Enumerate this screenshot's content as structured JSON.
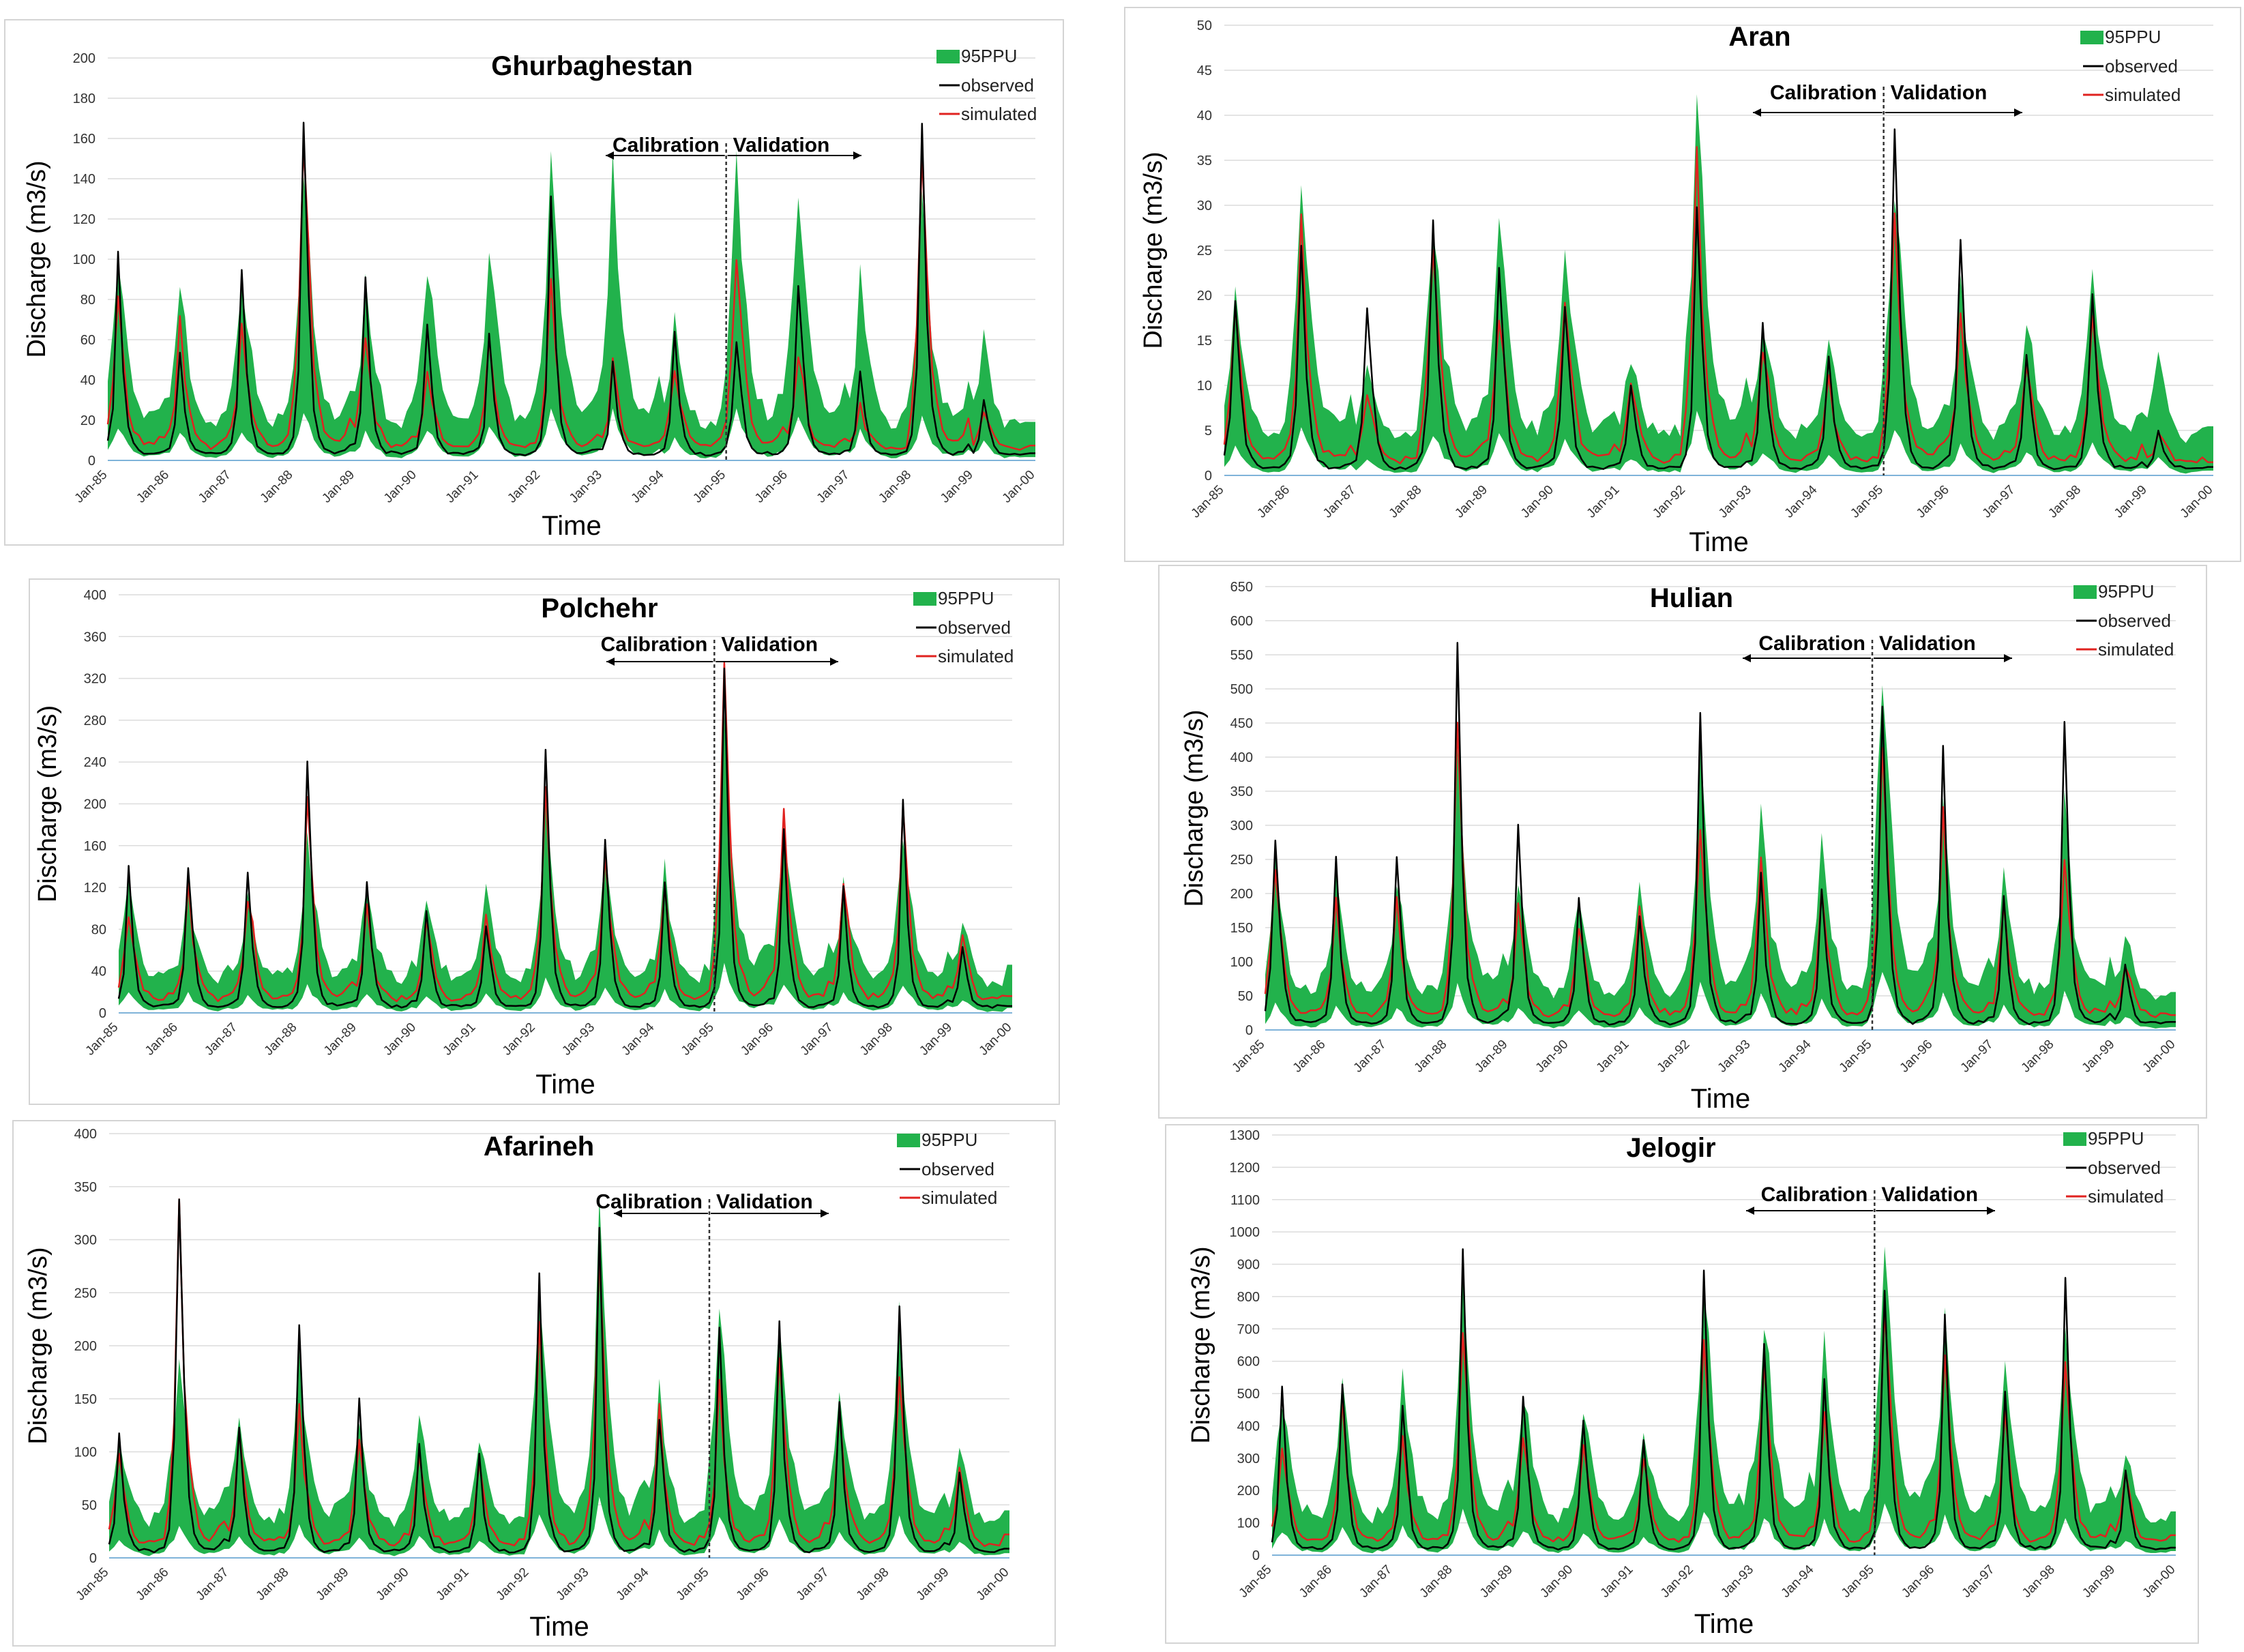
{
  "legend": {
    "band": "95PPU",
    "observed": "observed",
    "simulated": "simulated"
  },
  "annotations": {
    "calibration": "Calibration",
    "validation": "Validation"
  },
  "axis_labels": {
    "y": "Discharge (m3/s)",
    "x": "Time"
  },
  "colors": {
    "band": "#22b24c",
    "observed": "#000000",
    "simulated": "#e0221f",
    "divider": "#333333"
  },
  "x_ticks": [
    "Jan-85",
    "Jan-86",
    "Jan-87",
    "Jan-88",
    "Jan-89",
    "Jan-90",
    "Jan-91",
    "Jan-92",
    "Jan-93",
    "Jan-94",
    "Jan-95",
    "Jan-96",
    "Jan-97",
    "Jan-98",
    "Jan-99",
    "Jan-00"
  ],
  "chart_data": [
    {
      "type": "area",
      "title": "Ghurbaghestan",
      "ylabel": "Discharge (m3/s)",
      "xlabel": "Time",
      "ylim": [
        0,
        200
      ],
      "y_ticks": [
        0,
        20,
        40,
        60,
        80,
        100,
        120,
        140,
        160,
        180,
        200
      ],
      "x_range": [
        "Jan-85",
        "Jan-00"
      ],
      "validation_start": "Jan-95",
      "series": [
        {
          "name": "observed",
          "peaks": [
            95,
            52,
            92,
            165,
            85,
            67,
            55,
            125,
            42,
            55,
            60,
            95,
            40,
            165,
            25
          ]
        },
        {
          "name": "simulated",
          "peaks": [
            75,
            60,
            65,
            158,
            60,
            40,
            50,
            90,
            40,
            45,
            106,
            50,
            20,
            150,
            20
          ]
        },
        {
          "name": "95PPU",
          "peaks": [
            85,
            70,
            80,
            125,
            75,
            85,
            95,
            145,
            130,
            55,
            130,
            135,
            75,
            110,
            45
          ]
        }
      ]
    },
    {
      "type": "area",
      "title": "Aran",
      "ylabel": "Discharge (m3/s)",
      "xlabel": "Time",
      "ylim": [
        0,
        50
      ],
      "y_ticks": [
        0,
        5,
        10,
        15,
        20,
        25,
        30,
        35,
        40,
        45,
        50
      ],
      "x_range": [
        "Jan-85",
        "Jan-00"
      ],
      "validation_start": "Jan-95",
      "series": [
        {
          "name": "observed",
          "peaks": [
            20,
            23,
            18,
            27,
            23,
            19,
            9,
            28,
            15,
            13,
            37,
            23,
            12,
            21,
            4
          ]
        },
        {
          "name": "simulated",
          "peaks": [
            16,
            25,
            8,
            26,
            18,
            19,
            10,
            32,
            14,
            9,
            28,
            17,
            12,
            16,
            3
          ]
        },
        {
          "name": "95PPU",
          "peaks": [
            17,
            30,
            10,
            27,
            24,
            24,
            11,
            38,
            15,
            11,
            30,
            18,
            15,
            20,
            10
          ]
        }
      ]
    },
    {
      "type": "area",
      "title": "Polchehr",
      "ylabel": "Discharge (m3/s)",
      "xlabel": "Time",
      "ylim": [
        0,
        400
      ],
      "y_ticks": [
        0,
        40,
        80,
        120,
        160,
        200,
        240,
        280,
        320,
        360,
        400
      ],
      "x_range": [
        "Jan-85",
        "Jan-00"
      ],
      "validation_start": "Jan-95",
      "series": [
        {
          "name": "observed",
          "peaks": [
            130,
            142,
            128,
            225,
            130,
            97,
            80,
            232,
            150,
            112,
            290,
            155,
            110,
            180,
            55
          ]
        },
        {
          "name": "simulated",
          "peaks": [
            90,
            100,
            110,
            175,
            85,
            80,
            88,
            205,
            155,
            113,
            297,
            177,
            120,
            170,
            58
          ]
        },
        {
          "name": "95PPU",
          "peaks": [
            95,
            95,
            80,
            150,
            95,
            95,
            85,
            175,
            130,
            105,
            250,
            160,
            100,
            150,
            55
          ]
        }
      ]
    },
    {
      "type": "area",
      "title": "Hulian",
      "ylabel": "Discharge (m3/s)",
      "xlabel": "Time",
      "ylim": [
        0,
        650
      ],
      "y_ticks": [
        0,
        50,
        100,
        150,
        200,
        250,
        300,
        350,
        400,
        450,
        500,
        550,
        600,
        650
      ],
      "x_range": [
        "Jan-85",
        "Jan-00"
      ],
      "validation_start": "Jan-95",
      "series": [
        {
          "name": "observed",
          "peaks": [
            300,
            235,
            245,
            525,
            265,
            195,
            175,
            425,
            210,
            220,
            480,
            380,
            175,
            435,
            85
          ]
        },
        {
          "name": "simulated",
          "peaks": [
            215,
            160,
            160,
            415,
            160,
            140,
            155,
            305,
            255,
            205,
            420,
            280,
            170,
            260,
            80
          ]
        },
        {
          "name": "95PPU",
          "peaks": [
            190,
            180,
            170,
            340,
            170,
            160,
            170,
            345,
            280,
            220,
            510,
            290,
            180,
            270,
            100
          ]
        }
      ]
    },
    {
      "type": "area",
      "title": "Afarineh",
      "ylabel": "Discharge (m3/s)",
      "xlabel": "Time",
      "ylim": [
        0,
        400
      ],
      "y_ticks": [
        0,
        50,
        100,
        150,
        200,
        250,
        300,
        350,
        400
      ],
      "x_range": [
        "Jan-85",
        "Jan-00"
      ],
      "validation_start": "Jan-95",
      "series": [
        {
          "name": "observed",
          "peaks": [
            110,
            365,
            118,
            197,
            140,
            110,
            85,
            240,
            295,
            125,
            200,
            205,
            130,
            245,
            75
          ]
        },
        {
          "name": "simulated",
          "peaks": [
            80,
            295,
            100,
            135,
            100,
            95,
            70,
            200,
            285,
            120,
            150,
            195,
            125,
            170,
            70
          ]
        },
        {
          "name": "95PPU",
          "peaks": [
            100,
            180,
            120,
            170,
            110,
            120,
            90,
            245,
            290,
            130,
            210,
            210,
            150,
            200,
            80
          ]
        }
      ]
    },
    {
      "type": "area",
      "title": "Jelogir",
      "ylabel": "Discharge (m3/s)",
      "xlabel": "Time",
      "ylim": [
        0,
        1300
      ],
      "y_ticks": [
        0,
        100,
        200,
        300,
        400,
        500,
        600,
        700,
        800,
        900,
        1000,
        1100,
        1200,
        1300
      ],
      "x_range": [
        "Jan-85",
        "Jan-00"
      ],
      "validation_start": "Jan-95",
      "series": [
        {
          "name": "observed",
          "peaks": [
            450,
            500,
            450,
            840,
            480,
            430,
            330,
            780,
            620,
            480,
            880,
            700,
            450,
            750,
            250
          ]
        },
        {
          "name": "simulated",
          "peaks": [
            330,
            400,
            330,
            690,
            340,
            330,
            290,
            640,
            560,
            400,
            800,
            600,
            380,
            570,
            200
          ]
        },
        {
          "name": "95PPU",
          "peaks": [
            400,
            420,
            460,
            700,
            420,
            400,
            320,
            780,
            700,
            530,
            1000,
            640,
            520,
            640,
            260
          ]
        }
      ]
    }
  ]
}
